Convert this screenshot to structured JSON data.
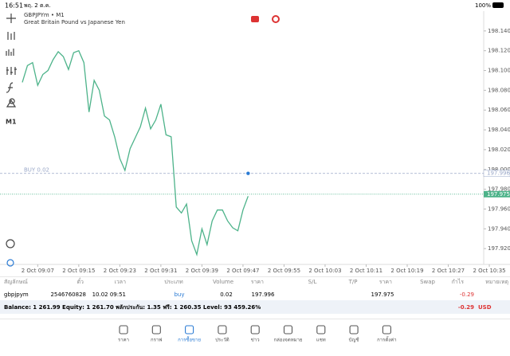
{
  "status_bar": {
    "time": "16:51",
    "date": "พฤ. 2 ต.ค.",
    "battery": "100%"
  },
  "chart_data": {
    "type": "line",
    "title": "GBPJPYm • M1",
    "subtitle": "Great Britain Pound vs Japanese Yen",
    "timeframe": "M1",
    "categories": [
      null,
      null,
      null,
      "2 Oct 09:07",
      null,
      null,
      null,
      null,
      null,
      null,
      null,
      "2 Oct 09:15",
      null,
      null,
      null,
      null,
      null,
      null,
      null,
      "2 Oct 09:23",
      null,
      null,
      null,
      null,
      null,
      null,
      null,
      "2 Oct 09:31",
      null,
      null,
      null,
      null,
      null,
      null,
      null,
      "2 Oct 09:39",
      null,
      null,
      null,
      null,
      null,
      null,
      null,
      "2 Oct 09:47",
      null,
      null,
      null,
      null,
      null,
      null,
      null,
      "2 Oct 09:55",
      null,
      null,
      null,
      null,
      null,
      null,
      null,
      "2 Oct 10:03",
      null,
      null,
      null,
      null,
      null,
      null,
      null,
      "2 Oct 10:11",
      null,
      null,
      null,
      null,
      null,
      null,
      null,
      "2 Oct 10:19",
      null,
      null,
      null,
      null,
      null,
      null,
      null,
      "2 Oct 10:27",
      null,
      null,
      null,
      null,
      null,
      null,
      null,
      "2 Oct 10:35"
    ],
    "series": [
      {
        "name": "GBPJPYm",
        "color": "#4db38a",
        "values": [
          198.088,
          198.105,
          198.108,
          198.085,
          198.096,
          198.1,
          198.111,
          198.119,
          198.114,
          198.101,
          198.118,
          198.12,
          198.108,
          198.058,
          198.09,
          198.08,
          198.054,
          198.05,
          198.033,
          198.011,
          197.999,
          198.021,
          198.032,
          198.043,
          198.062,
          198.041,
          198.05,
          198.066,
          198.035,
          198.033,
          197.962,
          197.956,
          197.965,
          197.928,
          197.914,
          197.94,
          197.924,
          197.948,
          197.959,
          197.959,
          197.948,
          197.941,
          197.938,
          197.959,
          197.973,
          null,
          null,
          null,
          null,
          null,
          null,
          null,
          null,
          null,
          null,
          null,
          null,
          null,
          null,
          null,
          null,
          null,
          null,
          null,
          null,
          null,
          null,
          null,
          null,
          null,
          null,
          null,
          null,
          null,
          null,
          null,
          null,
          null,
          null,
          null,
          null,
          null,
          null,
          null,
          null,
          null,
          null,
          null,
          null,
          null,
          null,
          null
        ]
      }
    ],
    "ylim": [
      197.904,
      198.16
    ],
    "yticks": [
      {
        "value": 197.92,
        "label": "197.920"
      },
      {
        "value": 197.94,
        "label": "197.940"
      },
      {
        "value": 197.96,
        "label": "197.960"
      },
      {
        "value": 197.98,
        "label": "197.980"
      },
      {
        "value": 198.0,
        "label": "198.000"
      },
      {
        "value": 198.02,
        "label": "198.020"
      },
      {
        "value": 198.04,
        "label": "198.040"
      },
      {
        "value": 198.06,
        "label": "198.060"
      },
      {
        "value": 198.08,
        "label": "198.080"
      },
      {
        "value": 198.1,
        "label": "198.100"
      },
      {
        "value": 198.12,
        "label": "198.120"
      },
      {
        "value": 198.14,
        "label": "198.140"
      }
    ],
    "order_line": {
      "label": "BUY 0.02",
      "value": 197.996,
      "value_label": "197.996",
      "color": "#9aa8c8"
    },
    "price_line": {
      "value": 197.975,
      "value_label": "197.975",
      "color": "#4db38a"
    }
  },
  "table": {
    "headers": [
      "สัญลักษณ์",
      "ตั๋ว",
      "เวลา",
      "ประเภท",
      "Volume",
      "ราคา",
      "S/L",
      "T/P",
      "ราคา",
      "Swap",
      "กำไร",
      "หมายเหตุ"
    ],
    "row": {
      "symbol": "gbpjpym",
      "ticket": "2546760828",
      "time": "10.02 09:51",
      "type": "buy",
      "volume": "0.02",
      "open_price": "197.996",
      "price": "197.975",
      "profit": "-0.29"
    }
  },
  "balance": {
    "text": "Balance: 1 261.99 Equity: 1 261.70 พลักประกัน: 1.35 ฟรี: 1 260.35 Level: 93 459.26%",
    "profit": "-0.29",
    "currency": "USD"
  },
  "nav": [
    "ราคา",
    "กราฟ",
    "การซื้อขาย",
    "ประวัติ",
    "ข่าว",
    "กล่องจดหมาย",
    "แชท",
    "บัญชี",
    "การตั้งค่า"
  ]
}
